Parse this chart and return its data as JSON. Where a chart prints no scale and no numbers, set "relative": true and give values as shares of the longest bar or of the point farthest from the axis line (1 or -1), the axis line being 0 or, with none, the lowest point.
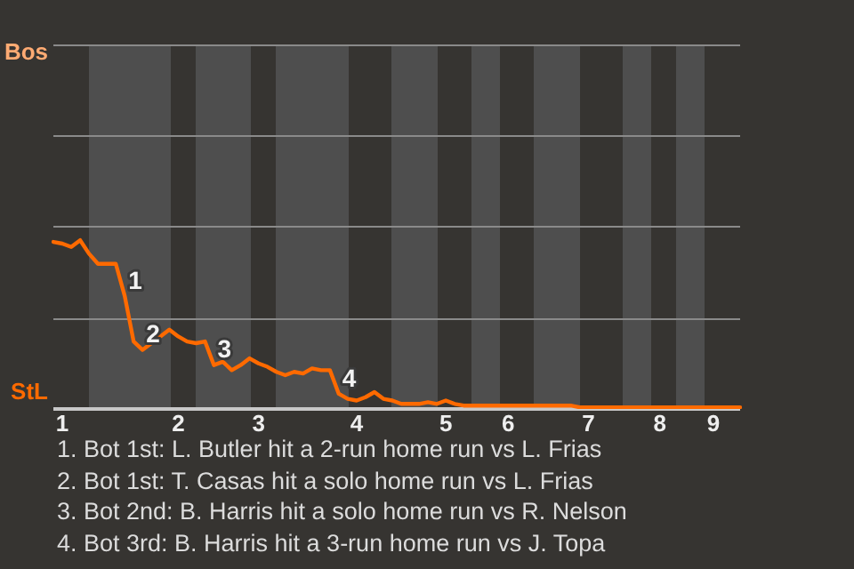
{
  "chart_data": {
    "type": "line",
    "relative": true,
    "categories": [
      null,
      "1",
      null,
      null,
      null,
      null,
      null,
      null,
      null,
      null,
      null,
      null,
      null,
      null,
      "2",
      null,
      null,
      null,
      null,
      null,
      null,
      null,
      null,
      "3",
      null,
      null,
      null,
      null,
      null,
      null,
      null,
      null,
      null,
      null,
      "4",
      null,
      null,
      null,
      null,
      null,
      null,
      null,
      null,
      null,
      "5",
      null,
      null,
      null,
      null,
      null,
      null,
      "6",
      null,
      null,
      null,
      null,
      null,
      null,
      null,
      null,
      "7",
      null,
      null,
      null,
      null,
      null,
      null,
      null,
      "8",
      null,
      null,
      null,
      null,
      null,
      "9",
      null,
      null,
      null
    ],
    "series": [
      {
        "color": "#ff6a00",
        "values": [
          0.99,
          0.98,
          0.96,
          1,
          0.92,
          0.86,
          0.86,
          0.86,
          0.67,
          0.4,
          0.35,
          0.39,
          0.43,
          0.47,
          0.43,
          0.4,
          0.39,
          0.4,
          0.26,
          0.28,
          0.23,
          0.26,
          0.3,
          0.27,
          0.25,
          0.22,
          0.2,
          0.22,
          0.21,
          0.24,
          0.23,
          0.23,
          0.09,
          0.06,
          0.05,
          0.07,
          0.1,
          0.06,
          0.05,
          0.03,
          0.03,
          0.03,
          0.04,
          0.03,
          0.05,
          0.03,
          0.02,
          0.02,
          0.02,
          0.02,
          0.02,
          0.02,
          0.02,
          0.02,
          0.02,
          0.02,
          0.02,
          0.02,
          0.02,
          0.01,
          0.01,
          0.01,
          0.01,
          0.01,
          0.01,
          0.01,
          0.01,
          0.01,
          0.01,
          0.01,
          0.01,
          0.01,
          0.01,
          0.01,
          0.01,
          0.01,
          0.01,
          0.01
        ]
      }
    ],
    "ref_lines": [
      {
        "axis": "y",
        "value": 0.54,
        "color": "#8a8a8a"
      }
    ],
    "legend": false,
    "marker": "none",
    "line_style": "solid",
    "annotations": [
      "Bos",
      "StL",
      {
        "text": "1",
        "y": 0.67
      },
      {
        "text": "2",
        "y": 0.35
      },
      {
        "text": "3",
        "y": 0.26
      },
      {
        "text": "4",
        "y": 0.09
      },
      "1. Bot 1st: L. Butler hit a 2-run home run vs L. Frias",
      "2. Bot 1st: T. Casas hit a solo home run vs L. Frias",
      "3. Bot 2nd: B. Harris hit a solo home run vs R. Nelson",
      "4. Bot 3rd: B. Harris hit a 3-run home run vs J. Topa"
    ]
  }
}
